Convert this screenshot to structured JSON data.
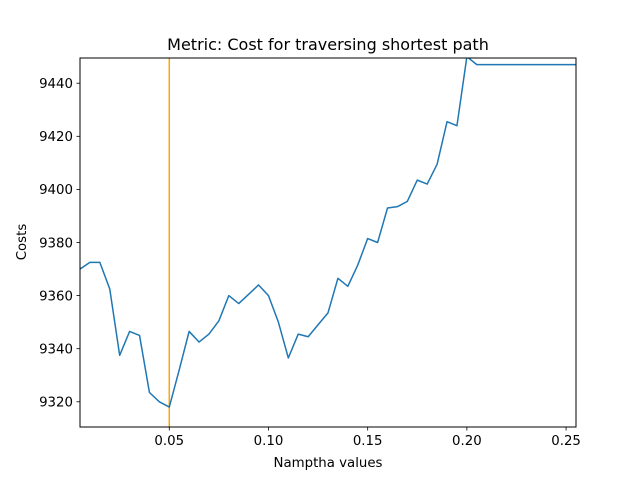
{
  "chart_data": {
    "type": "line",
    "title": "Metric: Cost for traversing shortest path",
    "xlabel": "Namptha values",
    "ylabel": "Costs",
    "xlim": [
      0.005,
      0.255
    ],
    "ylim": [
      9310.5,
      9449.5
    ],
    "xticks": [
      0.05,
      0.1,
      0.15,
      0.2,
      0.25
    ],
    "xtick_labels": [
      "0.05",
      "0.10",
      "0.15",
      "0.20",
      "0.25"
    ],
    "yticks": [
      9320,
      9340,
      9360,
      9380,
      9400,
      9420,
      9440
    ],
    "ytick_labels": [
      "9320",
      "9340",
      "9360",
      "9380",
      "9400",
      "9420",
      "9440"
    ],
    "grid": false,
    "series": [
      {
        "color": "#1f77b4",
        "x": [
          0.005,
          0.01,
          0.015,
          0.02,
          0.025,
          0.03,
          0.035,
          0.04,
          0.045,
          0.05,
          0.055,
          0.06,
          0.065,
          0.07,
          0.075,
          0.08,
          0.085,
          0.09,
          0.095,
          0.1,
          0.105,
          0.11,
          0.115,
          0.12,
          0.125,
          0.13,
          0.135,
          0.14,
          0.145,
          0.15,
          0.155,
          0.16,
          0.165,
          0.17,
          0.175,
          0.18,
          0.185,
          0.19,
          0.195,
          0.2,
          0.205,
          0.21,
          0.215,
          0.22,
          0.225,
          0.23,
          0.235,
          0.24,
          0.245,
          0.25,
          0.255
        ],
        "y": [
          9370,
          9372.5,
          9372.5,
          9362.5,
          9337.5,
          9346.5,
          9345,
          9323.5,
          9320,
          9318,
          9332,
          9346.5,
          9342.5,
          9345.5,
          9350.5,
          9360,
          9357,
          9360.5,
          9364,
          9360,
          9350,
          9336.5,
          9345.5,
          9344.5,
          9349,
          9353.5,
          9366.5,
          9363.5,
          9371.5,
          9381.5,
          9380,
          9393,
          9393.5,
          9395.5,
          9403.5,
          9402,
          9409.5,
          9425.5,
          9424,
          9450,
          9447,
          9447,
          9447,
          9447,
          9447,
          9447,
          9447,
          9447,
          9447,
          9447,
          9447
        ]
      }
    ],
    "vlines": [
      {
        "x": 0.05,
        "color": "#ffa500"
      }
    ]
  }
}
